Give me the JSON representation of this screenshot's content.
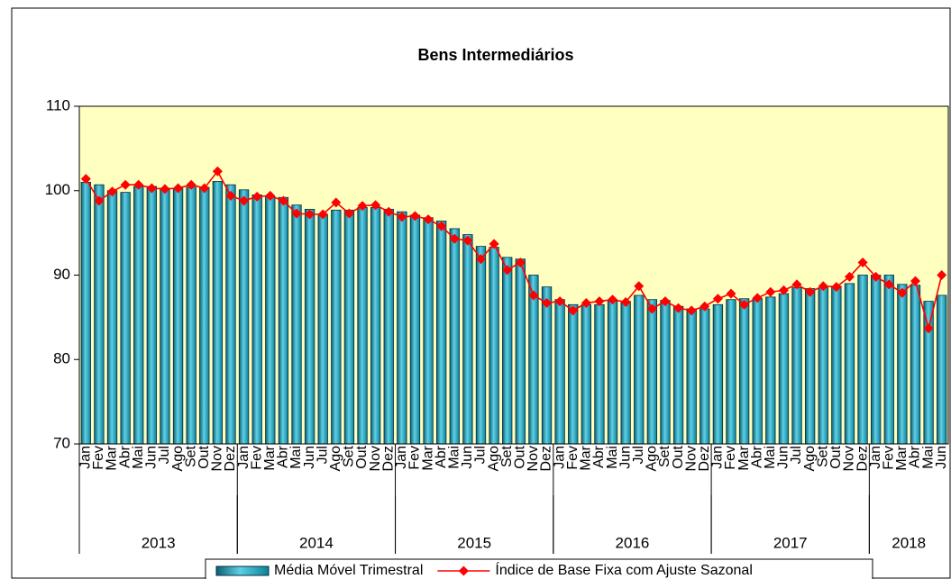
{
  "chart_data": {
    "type": "bar-line",
    "title": "Bens Intermediários",
    "categories": [
      "Jan",
      "Fev",
      "Mar",
      "Abr",
      "Mai",
      "Jun",
      "Jul",
      "Ago",
      "Set",
      "Out",
      "Nov",
      "Dez",
      "Jan",
      "Fev",
      "Mar",
      "Abr",
      "Mai",
      "Jun",
      "Jul",
      "Ago",
      "Set",
      "Out",
      "Nov",
      "Dez",
      "Jan",
      "Fev",
      "Mar",
      "Abr",
      "Mai",
      "Jun",
      "Jul",
      "Ago",
      "Set",
      "Out",
      "Nov",
      "Dez",
      "Jan",
      "Fev",
      "Mar",
      "Abr",
      "Mai",
      "Jun",
      "Jul",
      "Ago",
      "Set",
      "Out",
      "Nov",
      "Dez",
      "Jan",
      "Fev",
      "Mar",
      "Abr",
      "Mai",
      "Jun",
      "Jul",
      "Ago",
      "Set",
      "Out",
      "Nov",
      "Dez",
      "Jan",
      "Fev",
      "Mar",
      "Abr",
      "Mai",
      "Jun"
    ],
    "years": [
      "2013",
      "2014",
      "2015",
      "2016",
      "2017",
      "2018"
    ],
    "series": [
      {
        "name": "Média Móvel Trimestral",
        "type": "bar",
        "color": "#1aa3bf",
        "values": [
          101.0,
          100.7,
          100.0,
          99.8,
          100.5,
          100.5,
          100.3,
          100.3,
          100.4,
          100.4,
          101.1,
          100.7,
          100.1,
          99.5,
          99.3,
          99.2,
          98.3,
          97.8,
          97.2,
          97.7,
          97.7,
          98.0,
          98.0,
          97.8,
          97.5,
          97.1,
          96.8,
          96.4,
          95.5,
          94.8,
          93.4,
          93.3,
          92.1,
          91.9,
          90.0,
          88.6,
          87.1,
          86.5,
          86.5,
          86.5,
          86.9,
          86.9,
          87.6,
          87.1,
          87.0,
          86.3,
          86.0,
          86.0,
          86.5,
          87.1,
          87.2,
          87.2,
          87.4,
          87.8,
          88.5,
          88.4,
          88.5,
          88.7,
          89.0,
          90.0,
          90.0,
          90.0,
          88.9,
          88.8,
          86.9,
          87.6
        ]
      },
      {
        "name": "Índice de Base Fixa com Ajuste Sazonal",
        "type": "line",
        "color": "#ff0000",
        "values": [
          101.4,
          98.8,
          99.9,
          100.7,
          100.7,
          100.3,
          100.2,
          100.3,
          100.7,
          100.3,
          102.3,
          99.4,
          98.8,
          99.3,
          99.4,
          98.8,
          97.3,
          97.2,
          97.2,
          98.6,
          97.3,
          98.2,
          98.3,
          97.5,
          96.9,
          97.0,
          96.6,
          95.8,
          94.3,
          94.1,
          91.9,
          93.7,
          90.6,
          91.5,
          87.6,
          86.7,
          86.9,
          85.8,
          86.7,
          86.9,
          87.1,
          86.8,
          88.7,
          86.0,
          86.9,
          86.1,
          85.8,
          86.3,
          87.2,
          87.8,
          86.5,
          87.3,
          88.0,
          88.2,
          88.9,
          88.0,
          88.7,
          88.6,
          89.8,
          91.5,
          89.8,
          88.9,
          87.9,
          89.3,
          83.7,
          90.0
        ]
      }
    ],
    "ylim": [
      70,
      110
    ],
    "yticks": [
      70,
      80,
      90,
      100,
      110
    ],
    "plot_background": "#ffffc0",
    "grid": false,
    "legend": "bottom"
  }
}
